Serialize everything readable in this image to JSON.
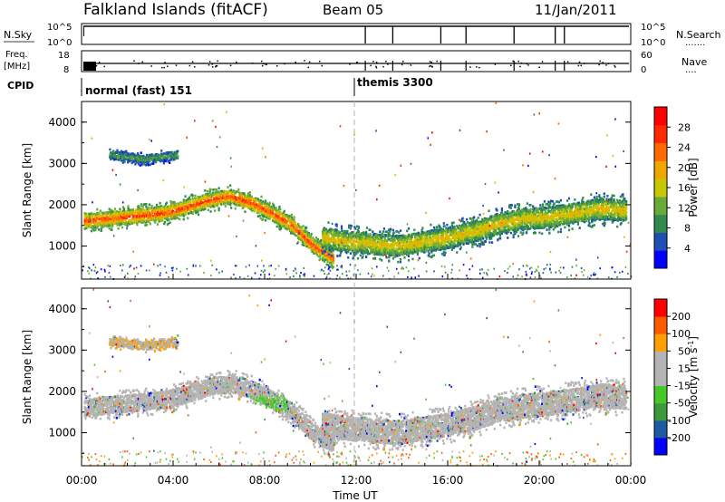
{
  "header": {
    "station": "Falkland Islands (fitACF)",
    "beam": "Beam 05",
    "date": "11/Jan/2011"
  },
  "colors": {
    "power_scale": [
      "#0000ff",
      "#1e4fb4",
      "#2f8a4e",
      "#6aaa3a",
      "#c8c800",
      "#f0a800",
      "#ff6a00",
      "#ff2a00",
      "#ff0000"
    ],
    "velocity_scale": [
      "#ff0000",
      "#ff5a00",
      "#ffa000",
      "#b4b4b4",
      "#b4b4b4",
      "#46c828",
      "#3c9a3c",
      "#1e5aa0",
      "#0000ff"
    ],
    "ground_scatter": "#b4b4b4"
  },
  "top_panels": {
    "nsky": {
      "label": "N.Sky",
      "left_ticks": [
        "10^5",
        "10^0"
      ],
      "right_ticks": [
        "10^5",
        "10^0"
      ],
      "right_label": "N.Search",
      "right_dots": "......."
    },
    "freq": {
      "label_line1": "Freq.",
      "label_line2": "[MHz]",
      "left_ticks": [
        "18",
        "8"
      ],
      "right_ticks": [
        "60",
        "0"
      ],
      "right_label": "Nave",
      "right_dots": "...."
    },
    "cpid": {
      "label": "CPID",
      "segments": [
        {
          "label": "normal (fast) 151",
          "start": 0.0
        },
        {
          "label": "themis 3300",
          "start": 11.92
        }
      ]
    }
  },
  "chart_data": [
    {
      "type": "heatmap",
      "title": "",
      "xlabel": "",
      "ylabel": "Slant Range [km]",
      "xlim": [
        0,
        24
      ],
      "ylim": [
        200,
        4500
      ],
      "yticks": [
        "1000",
        "2000",
        "3000",
        "4000"
      ],
      "colorbar": {
        "label": "Power [dB]",
        "ticks": [
          "4",
          "8",
          "12",
          "16",
          "20",
          "24",
          "28"
        ],
        "range": [
          0,
          30
        ]
      },
      "bands": [
        {
          "t0": 0.1,
          "t1": 11.0,
          "r_center": [
            1600,
            1650,
            1700,
            1750,
            1800,
            1950,
            2100,
            2200,
            2050,
            1800,
            1500,
            1000,
            700
          ],
          "width": 350,
          "peak": 26
        },
        {
          "t0": 10.5,
          "t1": 23.8,
          "r_center": [
            1200,
            1100,
            1050,
            1000,
            1100,
            1200,
            1350,
            1550,
            1650,
            1700,
            1800,
            1900,
            1850
          ],
          "width": 500,
          "peak": 18
        },
        {
          "t0": 1.2,
          "t1": 4.2,
          "r_center": [
            3200,
            3150,
            3100,
            3150,
            3200
          ],
          "width": 200,
          "peak": 10
        }
      ]
    },
    {
      "type": "heatmap",
      "title": "",
      "xlabel": "Time UT",
      "ylabel": "Slant Range [km]",
      "xlim": [
        0,
        24
      ],
      "ylim": [
        200,
        4500
      ],
      "xticks": [
        "00:00",
        "04:00",
        "08:00",
        "12:00",
        "16:00",
        "20:00",
        "00:00"
      ],
      "yticks": [
        "1000",
        "2000",
        "3000",
        "4000"
      ],
      "colorbar": {
        "label": "Velocity [m s^-1]",
        "ticks": [
          "200",
          "100",
          "50",
          "15",
          "-15",
          "-50",
          "-100",
          "-200"
        ],
        "range": [
          -250,
          250
        ]
      },
      "ground_scatter_fraction": 0.85,
      "bands": [
        {
          "t0": 0.1,
          "t1": 11.0,
          "r_center": [
            1600,
            1650,
            1700,
            1750,
            1800,
            1950,
            2100,
            2200,
            2050,
            1800,
            1500,
            1000,
            700
          ],
          "width": 420
        },
        {
          "t0": 10.5,
          "t1": 23.8,
          "r_center": [
            1200,
            1100,
            1050,
            1000,
            1100,
            1200,
            1350,
            1550,
            1650,
            1700,
            1800,
            1900,
            1850
          ],
          "width": 560
        },
        {
          "t0": 1.2,
          "t1": 4.2,
          "r_center": [
            3200,
            3150,
            3100,
            3150,
            3200
          ],
          "width": 200
        }
      ]
    }
  ],
  "labels": {
    "x_axis": "Time UT"
  }
}
